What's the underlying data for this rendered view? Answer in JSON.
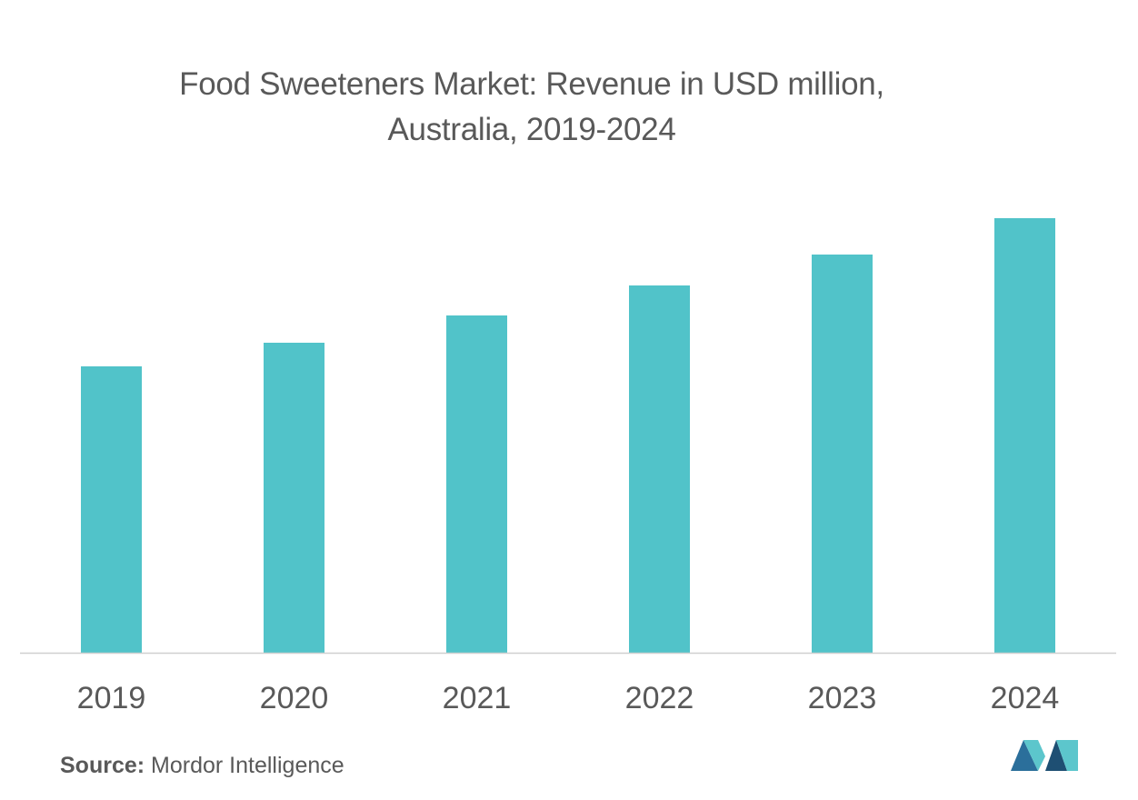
{
  "chart_data": {
    "type": "bar",
    "title_line1": "Food Sweeteners Market: Revenue in USD million,",
    "title_line2": "Australia, 2019-2024",
    "categories": [
      "2019",
      "2020",
      "2021",
      "2022",
      "2023",
      "2024"
    ],
    "values": [
      315,
      341,
      371,
      404,
      438,
      478
    ],
    "ylim": [
      0,
      520
    ],
    "xlabel": "",
    "ylabel": "",
    "grid": false,
    "legend": "none",
    "bar_color": "#51c3c9",
    "axis_color": "#d0d0d0"
  },
  "source": {
    "label": "Source:",
    "text": "Mordor Intelligence"
  },
  "logo": {
    "icon": "mordor-intelligence-logo-icon",
    "colors": [
      "#2b6f9b",
      "#5cc6cc",
      "#1e4f73"
    ]
  }
}
